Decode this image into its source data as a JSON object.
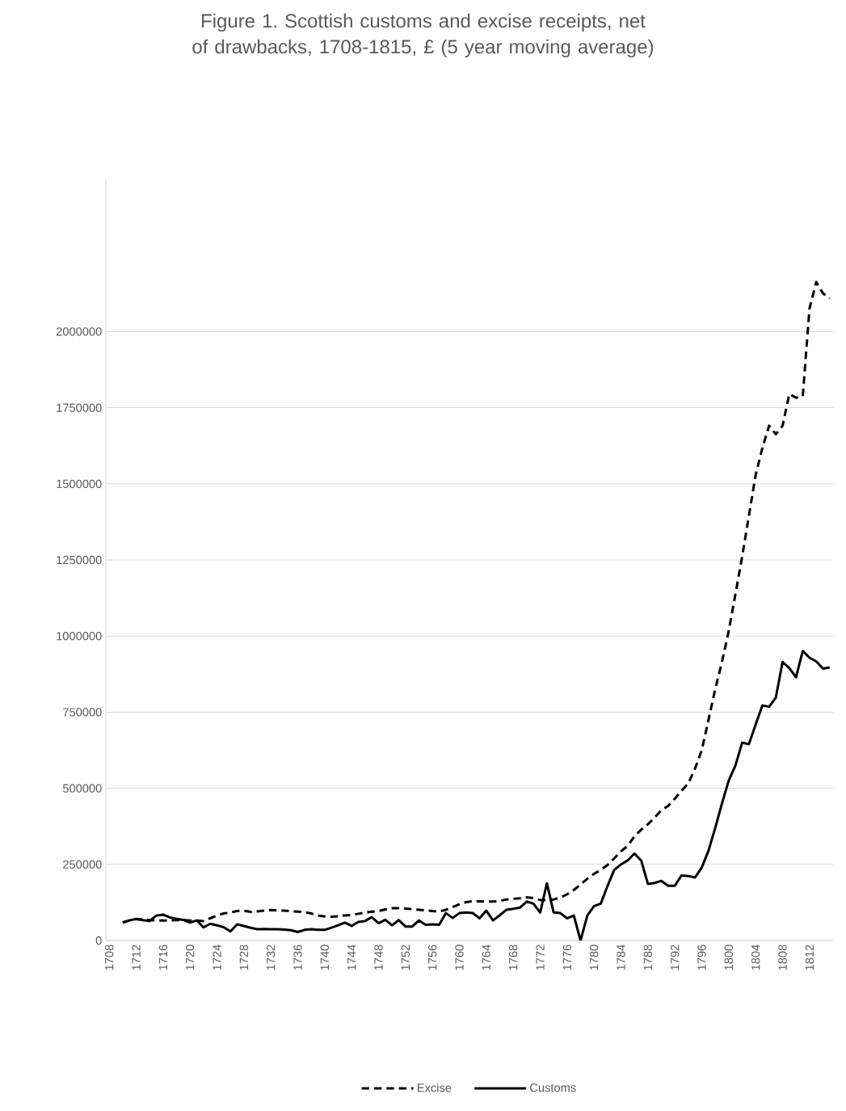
{
  "chart_data": {
    "type": "line",
    "title": "Figure 1. Scottish customs and excise receipts, net of drawbacks, 1708-1815, £ (5 year moving average)",
    "categories": [
      "1708",
      null,
      null,
      null,
      "1712",
      null,
      null,
      null,
      "1716",
      null,
      null,
      null,
      "1720",
      null,
      null,
      null,
      "1724",
      null,
      null,
      null,
      "1728",
      null,
      null,
      null,
      "1732",
      null,
      null,
      null,
      "1736",
      null,
      null,
      null,
      "1740",
      null,
      null,
      null,
      "1744",
      null,
      null,
      null,
      "1748",
      null,
      null,
      null,
      "1752",
      null,
      null,
      null,
      "1756",
      null,
      null,
      null,
      "1760",
      null,
      null,
      null,
      "1764",
      null,
      null,
      null,
      "1768",
      null,
      null,
      null,
      "1772",
      null,
      null,
      null,
      "1776",
      null,
      null,
      null,
      "1780",
      null,
      null,
      null,
      "1784",
      null,
      null,
      null,
      "1788",
      null,
      null,
      null,
      "1792",
      null,
      null,
      null,
      "1796",
      null,
      null,
      null,
      "1800",
      null,
      null,
      null,
      "1804",
      null,
      null,
      null,
      "1808",
      null,
      null,
      null,
      "1812",
      null,
      null,
      null
    ],
    "series": [
      {
        "name": "Excise",
        "color": "#000000",
        "line_style": "dashed",
        "values": [
          null,
          null,
          59000,
          66000,
          70000,
          70000,
          67000,
          66000,
          66000,
          66000,
          67000,
          67000,
          66000,
          66000,
          64000,
          73000,
          82000,
          89000,
          92000,
          97000,
          98000,
          94000,
          96000,
          98000,
          100000,
          99000,
          98000,
          96000,
          95000,
          93000,
          89000,
          82000,
          79000,
          78000,
          80000,
          82000,
          84000,
          88000,
          92000,
          95000,
          97000,
          102000,
          106000,
          106000,
          105000,
          103000,
          101000,
          99000,
          97000,
          95000,
          101000,
          110000,
          119000,
          126000,
          129000,
          129000,
          128000,
          128000,
          130000,
          135000,
          137000,
          139000,
          142000,
          139000,
          133000,
          133000,
          135000,
          141000,
          152000,
          166000,
          184000,
          203000,
          219000,
          232000,
          248000,
          270000,
          293000,
          311000,
          342000,
          364000,
          382000,
          404000,
          428000,
          442000,
          466000,
          492000,
          516000,
          565000,
          625000,
          725000,
          826000,
          915000,
          1016000,
          1138000,
          1261000,
          1395000,
          1529000,
          1618000,
          1691000,
          1663000,
          1691000,
          1795000,
          1783000,
          1788000,
          2076000,
          2163000,
          2126000,
          2109000
        ]
      },
      {
        "name": "Customs",
        "color": "#000000",
        "line_style": "solid",
        "values": [
          null,
          null,
          59000,
          66000,
          71000,
          67000,
          64000,
          82000,
          85000,
          76000,
          71000,
          68000,
          59000,
          66000,
          43000,
          55000,
          50000,
          44000,
          30000,
          53000,
          48000,
          42000,
          37000,
          38000,
          37000,
          37000,
          36000,
          34000,
          28000,
          35000,
          37000,
          35000,
          35000,
          42000,
          50000,
          59000,
          48000,
          61000,
          64000,
          77000,
          57000,
          68000,
          50000,
          67000,
          46000,
          46000,
          66000,
          52000,
          53000,
          52000,
          90000,
          74000,
          90000,
          92000,
          90000,
          73000,
          98000,
          66000,
          83000,
          101000,
          104000,
          108000,
          128000,
          121000,
          92000,
          188000,
          92000,
          90000,
          73000,
          82000,
          0,
          82000,
          113000,
          121000,
          179000,
          232000,
          250000,
          263000,
          286000,
          263000,
          186000,
          189000,
          196000,
          180000,
          180000,
          214000,
          212000,
          207000,
          240000,
          295000,
          370000,
          450000,
          525000,
          575000,
          650000,
          645000,
          709000,
          772000,
          768000,
          798000,
          915000,
          895000,
          865000,
          951000,
          929000,
          917000,
          893000,
          897000
        ]
      }
    ],
    "ylim": [
      0,
      2500000
    ],
    "yticks": [
      0,
      250000,
      500000,
      750000,
      1000000,
      1250000,
      1500000,
      1750000,
      2000000
    ],
    "grid": "y",
    "legend": "bottom",
    "marker": "none"
  }
}
